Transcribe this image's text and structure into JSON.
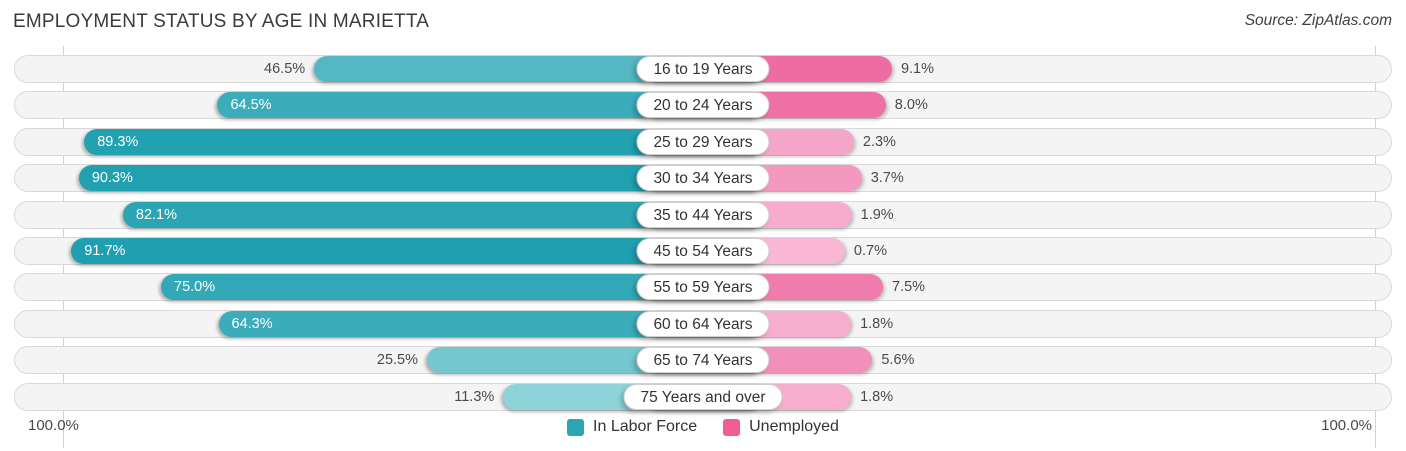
{
  "title": "EMPLOYMENT STATUS BY AGE IN MARIETTA",
  "source": "Source: ZipAtlas.com",
  "chart_data": {
    "type": "bar",
    "orientation": "horizontal",
    "diverging": true,
    "title": "EMPLOYMENT STATUS BY AGE IN MARIETTA",
    "categories": [
      "16 to 19 Years",
      "20 to 24 Years",
      "25 to 29 Years",
      "30 to 34 Years",
      "35 to 44 Years",
      "45 to 54 Years",
      "55 to 59 Years",
      "60 to 64 Years",
      "65 to 74 Years",
      "75 Years and over"
    ],
    "series": [
      {
        "name": "In Labor Force",
        "side": "left",
        "values": [
          46.5,
          64.5,
          89.3,
          90.3,
          82.1,
          91.7,
          75.0,
          64.3,
          25.5,
          11.3
        ],
        "labels": [
          "46.5%",
          "64.5%",
          "89.3%",
          "90.3%",
          "82.1%",
          "91.7%",
          "75.0%",
          "64.3%",
          "25.5%",
          "11.3%"
        ],
        "legend_color": "#2ba6b4",
        "colors": [
          "#54b7c3",
          "#3aacba",
          "#22a1b1",
          "#21a0b0",
          "#2ba5b4",
          "#1f9fb0",
          "#33a9b7",
          "#3aacba",
          "#74c6cf",
          "#8fd3da"
        ]
      },
      {
        "name": "Unemployed",
        "side": "right",
        "values": [
          9.1,
          8.0,
          2.3,
          3.7,
          1.9,
          0.7,
          7.5,
          1.8,
          5.6,
          1.8
        ],
        "labels": [
          "9.1%",
          "8.0%",
          "2.3%",
          "3.7%",
          "1.9%",
          "0.7%",
          "7.5%",
          "1.8%",
          "5.6%",
          "1.8%"
        ],
        "legend_color": "#ee5f96",
        "colors": [
          "#ef6ba3",
          "#ef70a6",
          "#f5a5c8",
          "#f399c0",
          "#f7abcd",
          "#f9b7d3",
          "#f07cab",
          "#f7adce",
          "#f190bb",
          "#f7adce"
        ]
      }
    ],
    "xlim": [
      0,
      100
    ],
    "axis_labels": {
      "left": "100.0%",
      "right": "100.0%"
    },
    "legend_position": "bottom-center",
    "grid": "100-percent-lines-both-sides"
  }
}
